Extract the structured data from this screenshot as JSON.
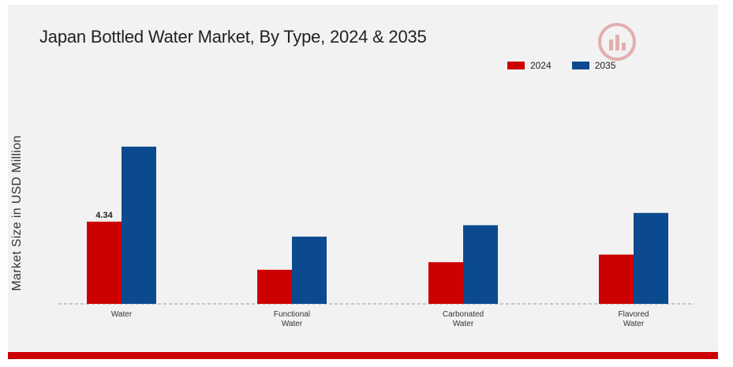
{
  "chart_data": {
    "type": "bar",
    "title": "Japan Bottled Water Market, By Type, 2024 & 2035",
    "ylabel": "Market Size in USD Million",
    "xlabel": "",
    "categories": [
      [
        "Water"
      ],
      [
        "Functional",
        "Water"
      ],
      [
        "Carbonated",
        "Water"
      ],
      [
        "Flavored",
        "Water"
      ]
    ],
    "series": [
      {
        "name": "2024",
        "color": "#cc0000",
        "values": [
          4.34,
          1.8,
          2.2,
          2.6
        ]
      },
      {
        "name": "2035",
        "color": "#0b4a8f",
        "values": [
          8.3,
          3.55,
          4.15,
          4.8
        ]
      }
    ],
    "data_labels": [
      {
        "series": 0,
        "index": 0,
        "text": "4.34"
      }
    ],
    "ylim": [
      0,
      10
    ],
    "grid": false,
    "legend_position": "top-right"
  },
  "watermark_icon": "chart-logo-icon"
}
